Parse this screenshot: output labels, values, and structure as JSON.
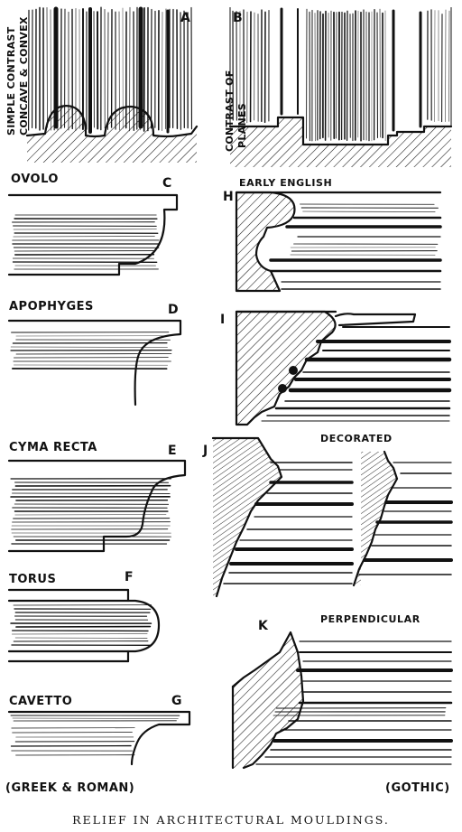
{
  "caption": "RELIEF IN ARCHITECTURAL MOULDINGS.",
  "footer_left": "(GREEK & ROMAN)",
  "footer_right": "(GOTHIC)",
  "panels": {
    "a": {
      "letter": "A",
      "label_line1": "SIMPLE CONTRAST",
      "label_line2": "CONCAVE & CONVEX"
    },
    "b": {
      "letter": "B",
      "label_line1": "CONTRAST OF",
      "label_line2": "PLANES"
    },
    "c": {
      "letter": "C",
      "title": "OVOLO"
    },
    "d": {
      "letter": "D",
      "title": "APOPHYGES"
    },
    "e": {
      "letter": "E",
      "title": "CYMA RECTA"
    },
    "f": {
      "letter": "F",
      "title": "TORUS"
    },
    "g": {
      "letter": "G",
      "title": "CAVETTO"
    },
    "h": {
      "letter": "H",
      "title": "EARLY ENGLISH"
    },
    "i": {
      "letter": "I"
    },
    "j": {
      "letter": "J",
      "title": "DECORATED"
    },
    "k": {
      "letter": "K",
      "title": "PERPENDICULAR"
    }
  }
}
